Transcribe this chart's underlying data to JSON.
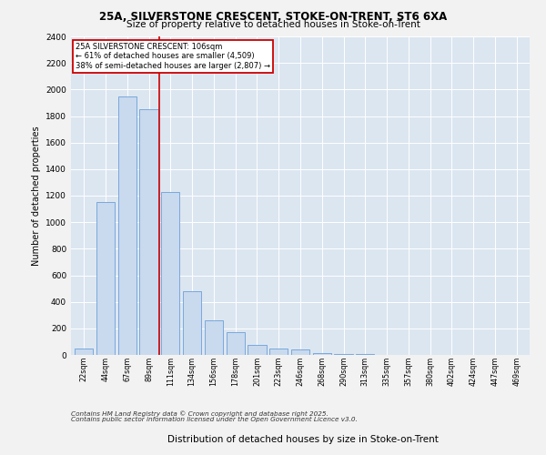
{
  "title1": "25A, SILVERSTONE CRESCENT, STOKE-ON-TRENT, ST6 6XA",
  "title2": "Size of property relative to detached houses in Stoke-on-Trent",
  "xlabel": "Distribution of detached houses by size in Stoke-on-Trent",
  "ylabel": "Number of detached properties",
  "categories": [
    "22sqm",
    "44sqm",
    "67sqm",
    "89sqm",
    "111sqm",
    "134sqm",
    "156sqm",
    "178sqm",
    "201sqm",
    "223sqm",
    "246sqm",
    "268sqm",
    "290sqm",
    "313sqm",
    "335sqm",
    "357sqm",
    "380sqm",
    "402sqm",
    "424sqm",
    "447sqm",
    "469sqm"
  ],
  "values": [
    50,
    1150,
    1950,
    1850,
    1230,
    480,
    260,
    170,
    75,
    50,
    40,
    15,
    10,
    5,
    0,
    0,
    0,
    0,
    0,
    0,
    0
  ],
  "bar_color": "#c9d9ee",
  "bar_edge_color": "#6a9fd8",
  "vline_x": 3.5,
  "vline_color": "#cc0000",
  "annotation_title": "25A SILVERSTONE CRESCENT: 106sqm",
  "annotation_line1": "← 61% of detached houses are smaller (4,509)",
  "annotation_line2": "38% of semi-detached houses are larger (2,807) →",
  "box_color": "#cc0000",
  "ylim": [
    0,
    2400
  ],
  "yticks": [
    0,
    200,
    400,
    600,
    800,
    1000,
    1200,
    1400,
    1600,
    1800,
    2000,
    2200,
    2400
  ],
  "footer1": "Contains HM Land Registry data © Crown copyright and database right 2025.",
  "footer2": "Contains public sector information licensed under the Open Government Licence v3.0.",
  "fig_bg": "#f2f2f2",
  "plot_bg": "#dce6f1"
}
